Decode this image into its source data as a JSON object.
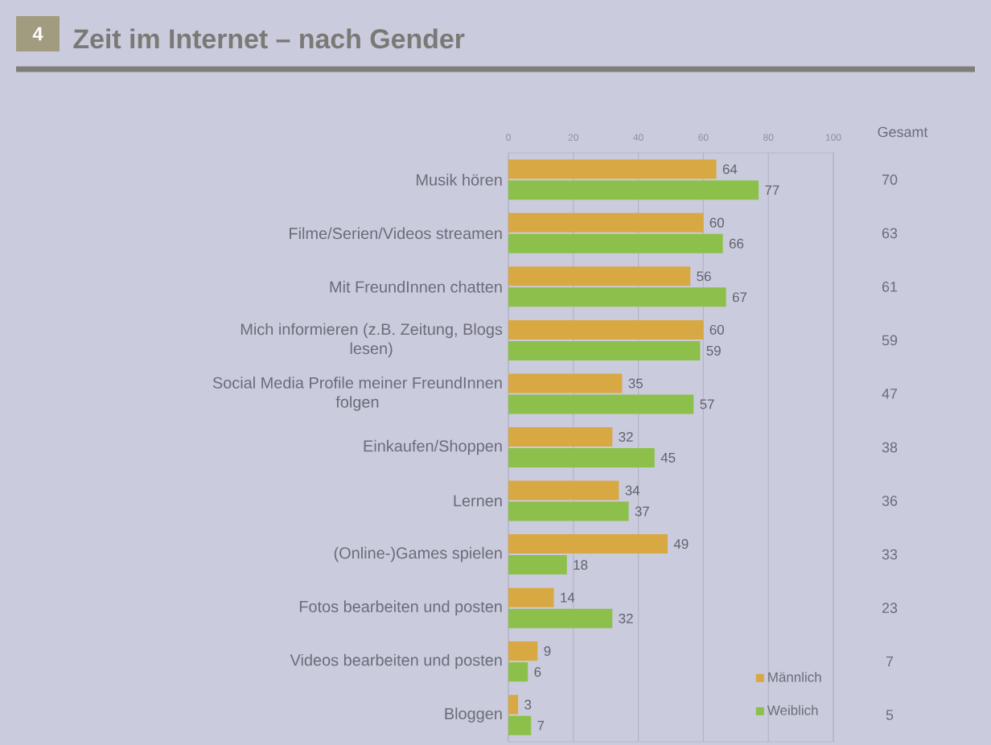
{
  "chart_data": {
    "type": "bar",
    "orientation": "horizontal",
    "title": "Zeit im Internet – nach Gender",
    "categories": [
      "Musik hören",
      "Filme/Serien/Videos streamen",
      "Mit FreundInnen chatten",
      "Mich informieren (z.B. Zeitung, Blogs lesen)",
      "Social Media Profile meiner FreundInnen folgen",
      "Einkaufen/Shoppen",
      "Lernen",
      "(Online-)Games spielen",
      "Fotos bearbeiten und posten",
      "Videos bearbeiten und posten",
      "Bloggen"
    ],
    "series": [
      {
        "name": "Männlich",
        "color": "#d8a842",
        "values": [
          64,
          60,
          56,
          60,
          35,
          32,
          34,
          49,
          14,
          9,
          3
        ]
      },
      {
        "name": "Weiblich",
        "color": "#8dc04a",
        "values": [
          77,
          66,
          67,
          59,
          57,
          45,
          37,
          18,
          32,
          6,
          7
        ]
      }
    ],
    "xlim": [
      0,
      100
    ],
    "xticks": [
      0,
      20,
      40,
      60,
      80,
      100
    ],
    "grid": "x",
    "legend": "bottom right",
    "data_labels": true,
    "annotations": [
      "4",
      "Gesamt",
      "70",
      "63",
      "61",
      "59",
      "47",
      "38",
      "36",
      "33",
      "23",
      "7",
      "5"
    ]
  }
}
